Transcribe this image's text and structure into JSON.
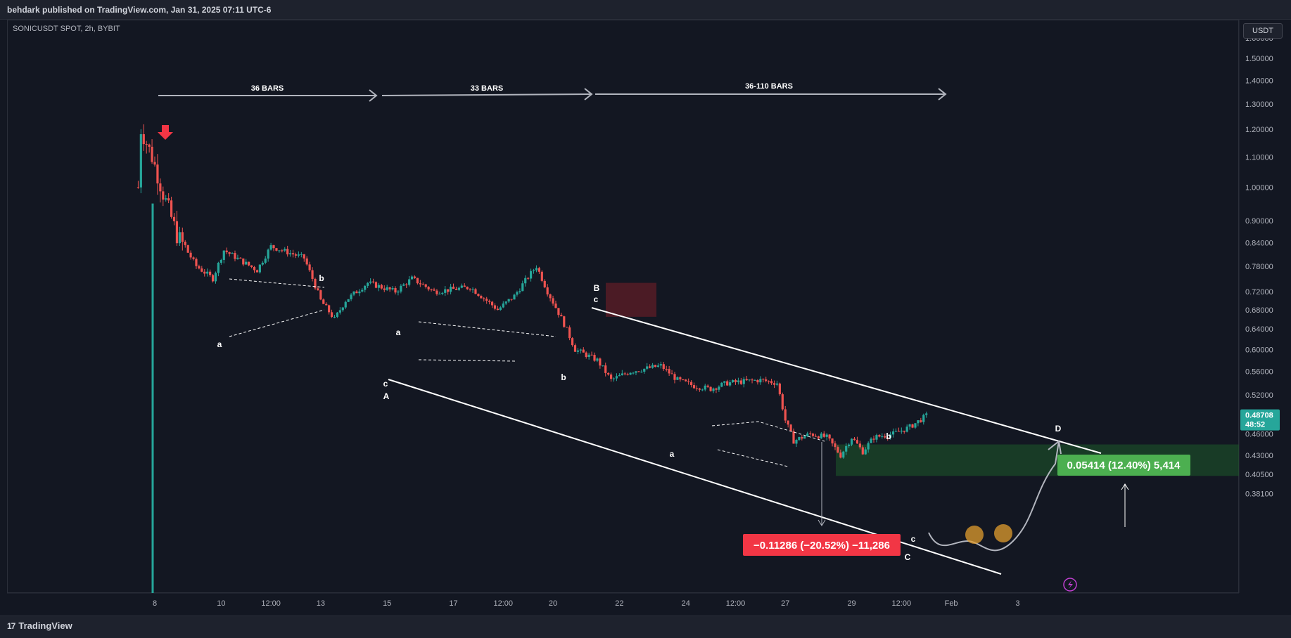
{
  "header": {
    "published_text": "behdark published on TradingView.com, Jan 31, 2025 07:11 UTC-6"
  },
  "symbol_line": "SONICUSDT SPOT, 2h, BYBIT",
  "currency_button": "USDT",
  "footer": {
    "brand": "TradingView",
    "brand_mark": "17"
  },
  "chart_data": {
    "type": "candlestick",
    "symbol": "SONICUSDT",
    "interval": "2h",
    "exchange": "BYBIT",
    "y_scale": "log",
    "y_ticks": [
      "1.60000",
      "1.50000",
      "1.40000",
      "1.30000",
      "1.20000",
      "1.10000",
      "1.00000",
      "0.90000",
      "0.84000",
      "0.78000",
      "0.72000",
      "0.68000",
      "0.64000",
      "0.60000",
      "0.56000",
      "0.52000",
      "0.46000",
      "0.43000",
      "0.40500",
      "0.38100"
    ],
    "x_ticks": [
      "8",
      "10",
      "12:00",
      "13",
      "15",
      "17",
      "12:00",
      "20",
      "22",
      "24",
      "12:00",
      "27",
      "29",
      "12:00",
      "Feb",
      "3"
    ],
    "last_price": "0.48708",
    "countdown": "48:52",
    "price_path": [
      [
        "Jan 7 12:00",
        1.0
      ],
      [
        "Jan 7 14:00",
        1.2
      ],
      [
        "Jan 7 22:00",
        1.1
      ],
      [
        "Jan 8 06:00",
        0.98
      ],
      [
        "Jan 8 16:00",
        0.86
      ],
      [
        "Jan 9 06:00",
        0.78
      ],
      [
        "Jan 9 18:00",
        0.75
      ],
      [
        "Jan 10 02:00",
        0.82
      ],
      [
        "Jan 10 16:00",
        0.79
      ],
      [
        "Jan 11 02:00",
        0.77
      ],
      [
        "Jan 11 12:00",
        0.83
      ],
      [
        "Jan 12 12:00",
        0.8
      ],
      [
        "Jan 13 00:00",
        0.7
      ],
      [
        "Jan 13 10:00",
        0.66
      ],
      [
        "Jan 13 18:00",
        0.7
      ],
      [
        "Jan 14 10:00",
        0.74
      ],
      [
        "Jan 15 06:00",
        0.72
      ],
      [
        "Jan 15 18:00",
        0.75
      ],
      [
        "Jan 16 10:00",
        0.72
      ],
      [
        "Jan 17 12:00",
        0.73
      ],
      [
        "Jan 18 08:00",
        0.68
      ],
      [
        "Jan 18 20:00",
        0.71
      ],
      [
        "Jan 19 12:00",
        0.78
      ],
      [
        "Jan 19 20:00",
        0.72
      ],
      [
        "Jan 20 08:00",
        0.65
      ],
      [
        "Jan 20 16:00",
        0.6
      ],
      [
        "Jan 21 08:00",
        0.58
      ],
      [
        "Jan 21 18:00",
        0.545
      ],
      [
        "Jan 22 08:00",
        0.56
      ],
      [
        "Jan 23 06:00",
        0.57
      ],
      [
        "Jan 23 18:00",
        0.545
      ],
      [
        "Jan 24 06:00",
        0.535
      ],
      [
        "Jan 24 18:00",
        0.53
      ],
      [
        "Jan 25 06:00",
        0.54
      ],
      [
        "Jan 26 06:00",
        0.545
      ],
      [
        "Jan 26 18:00",
        0.54
      ],
      [
        "Jan 27 00:00",
        0.48
      ],
      [
        "Jan 27 06:00",
        0.45
      ],
      [
        "Jan 27 18:00",
        0.46
      ],
      [
        "Jan 28 06:00",
        0.455
      ],
      [
        "Jan 28 16:00",
        0.43
      ],
      [
        "Jan 29 00:00",
        0.455
      ],
      [
        "Jan 29 08:00",
        0.435
      ],
      [
        "Jan 29 16:00",
        0.455
      ],
      [
        "Jan 30 06:00",
        0.46
      ],
      [
        "Jan 30 18:00",
        0.47
      ],
      [
        "Jan 31 06:00",
        0.487
      ]
    ],
    "measure_down": "−0.11286 (−20.52%) −11,286",
    "measure_up": "0.05414 (12.40%) 5,414",
    "bar_spans": [
      "36 BARS",
      "33 BARS",
      "36-110 BARS"
    ],
    "wave_labels": {
      "major": [
        "A",
        "B",
        "C",
        "D"
      ],
      "minor": [
        "a",
        "b",
        "c",
        "a",
        "b",
        "c",
        "a",
        "b",
        "c"
      ]
    },
    "colors": {
      "up": "#26a69a",
      "down": "#ef5350",
      "background": "#131722",
      "last_price_tag": "#26a69a",
      "loss_box": "#f23645",
      "gain_box": "#4caf50",
      "target_zone": "#1e5a2a",
      "supply_zone": "#7a1f28",
      "circle_marker": "#e29d2e",
      "sell_arrow": "#f23645"
    },
    "grid": false,
    "legend": "none"
  }
}
